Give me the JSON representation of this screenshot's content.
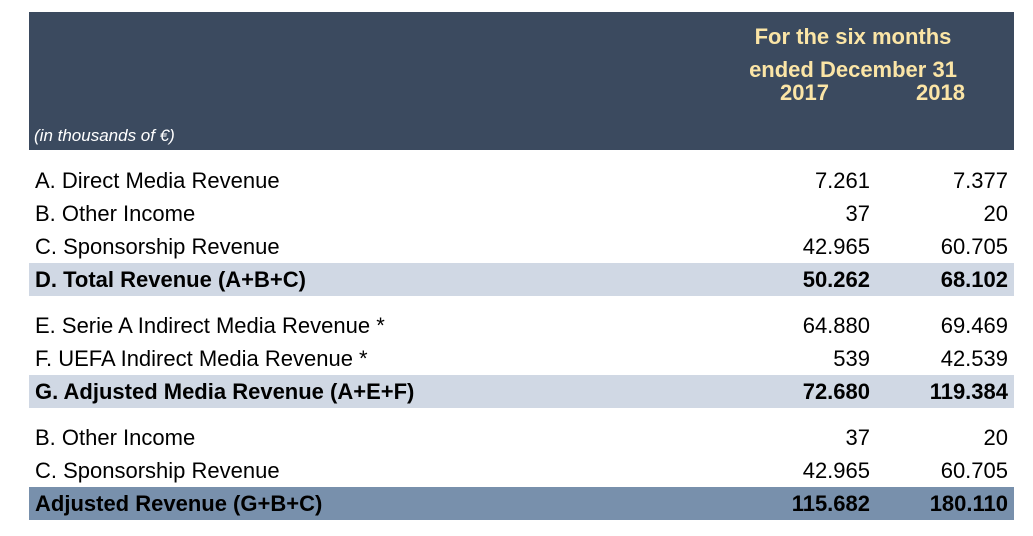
{
  "header": {
    "period_line1": "For the six months",
    "period_line2": "ended December 31",
    "year1": "2017",
    "year2": "2018",
    "units": "(in thousands of €)"
  },
  "rows": [
    {
      "label": "A. Direct Media Revenue",
      "v2017": "7.261",
      "v2018": "7.377"
    },
    {
      "label": "B. Other Income",
      "v2017": "37",
      "v2018": "20"
    },
    {
      "label": "C. Sponsorship Revenue",
      "v2017": "42.965",
      "v2018": "60.705"
    },
    {
      "label": "D. Total Revenue (A+B+C)",
      "v2017": "50.262",
      "v2018": "68.102"
    },
    {
      "label": "E. Serie A Indirect Media Revenue *",
      "v2017": "64.880",
      "v2018": "69.469"
    },
    {
      "label": "F. UEFA Indirect Media Revenue *",
      "v2017": "539",
      "v2018": "42.539"
    },
    {
      "label": "G. Adjusted Media Revenue  (A+E+F)",
      "v2017": "72.680",
      "v2018": "119.384"
    },
    {
      "label": "B. Other Income",
      "v2017": "37",
      "v2018": "20"
    },
    {
      "label": "C. Sponsorship Revenue",
      "v2017": "42.965",
      "v2018": "60.705"
    },
    {
      "label": "Adjusted Revenue (G+B+C)",
      "v2017": "115.682",
      "v2018": "180.110"
    }
  ],
  "colors": {
    "header_bg": "#3b4a5f",
    "header_text": "#fbe5a6",
    "subtotal_bg": "#d0d8e4",
    "grand_total_bg": "#7890ac"
  }
}
